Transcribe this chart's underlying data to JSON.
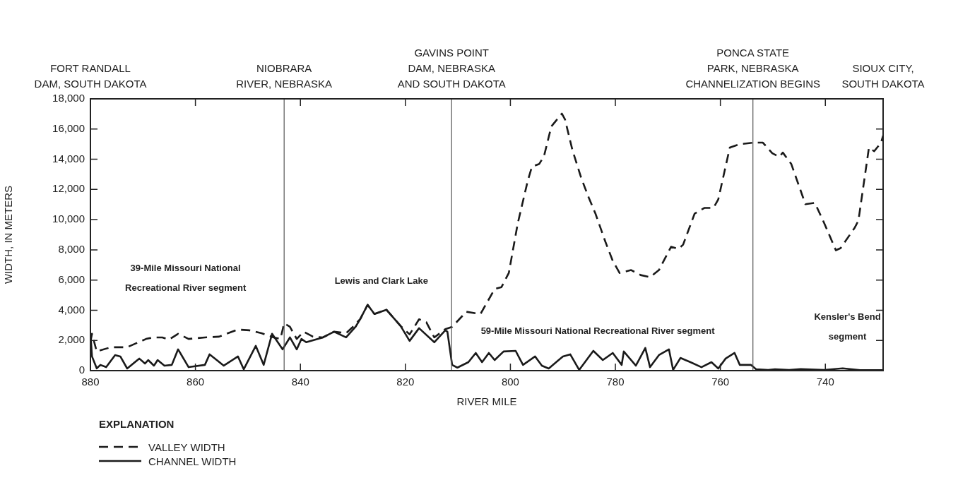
{
  "chart_data": {
    "type": "line",
    "xlabel": "RIVER MILE",
    "ylabel": "WIDTH, IN METERS",
    "legend_title": "EXPLANATION",
    "legend": "bottom left",
    "grid": false,
    "marker": "none",
    "xlim": [
      880,
      729
    ],
    "xticks": [
      880,
      860,
      840,
      820,
      800,
      780,
      760,
      740
    ],
    "ylim": [
      0,
      18000
    ],
    "yticks": [
      {
        "value": 0,
        "label": "0"
      },
      {
        "value": 2000,
        "label": "2,000"
      },
      {
        "value": 4000,
        "label": "4,000"
      },
      {
        "value": 6000,
        "label": "6,000"
      },
      {
        "value": 8000,
        "label": "8,000"
      },
      {
        "value": 10000,
        "label": "10,000"
      },
      {
        "value": 12000,
        "label": "12,000"
      },
      {
        "value": 14000,
        "label": "14,000"
      },
      {
        "value": 16000,
        "label": "16,000"
      },
      {
        "value": 18000,
        "label": "18,000"
      }
    ],
    "series": [
      {
        "name": "VALLEY WIDTH",
        "color": "#1a1a1a",
        "line_style": "dashed",
        "x": [
          880,
          879.7,
          878.8,
          876.1,
          873,
          869.4,
          868,
          866.3,
          865,
          863.3,
          861.3,
          858.2,
          855.5,
          853.8,
          851.9,
          849.7,
          847.4,
          845.1,
          843.8,
          843.1,
          842,
          840.7,
          839.4,
          837.6,
          835.7,
          833.6,
          831.3,
          830,
          828.6,
          827.2,
          825.9,
          823.6,
          820.9,
          819.2,
          817.4,
          816,
          814.5,
          812.4,
          811.1,
          808.4,
          805.7,
          803,
          801.7,
          800.3,
          798.6,
          796.7,
          795.9,
          794.5,
          793.6,
          792.2,
          790.2,
          789.6,
          788.2,
          786.5,
          785.1,
          783.8,
          781.9,
          780.5,
          779.2,
          777,
          775.2,
          773.4,
          771.7,
          769.4,
          768,
          767.1,
          764.9,
          763,
          761.3,
          760.4,
          758.2,
          756.3,
          753.6,
          751.9,
          750.1,
          748.8,
          748.1,
          746.5,
          743.8,
          742,
          740.2,
          738,
          737.1,
          734.4,
          733.7,
          731.7,
          730.7,
          729.4,
          729
        ],
        "values": [
          1900,
          2440,
          1270,
          1550,
          1550,
          2100,
          2200,
          2200,
          2060,
          2440,
          2100,
          2200,
          2250,
          2480,
          2720,
          2670,
          2480,
          2200,
          2100,
          3140,
          2900,
          2100,
          2580,
          2250,
          2200,
          2580,
          2480,
          2900,
          3420,
          4360,
          3750,
          4030,
          2950,
          2400,
          3400,
          3200,
          2200,
          2750,
          2900,
          3900,
          3750,
          5400,
          5530,
          6470,
          9750,
          12560,
          13500,
          13690,
          14200,
          16170,
          17020,
          16640,
          14630,
          12750,
          11480,
          10400,
          8530,
          7270,
          6470,
          6660,
          6330,
          6190,
          6660,
          8200,
          8060,
          8340,
          10400,
          10780,
          10780,
          11340,
          14770,
          15000,
          15100,
          15100,
          14390,
          14160,
          14440,
          13690,
          11020,
          11110,
          9750,
          7970,
          8110,
          9470,
          9940,
          14770,
          14530,
          15100,
          15560
        ]
      },
      {
        "name": "CHANNEL WIDTH",
        "color": "#1a1a1a",
        "line_style": "solid",
        "x": [
          880,
          879.7,
          878.8,
          878.1,
          877,
          875.3,
          874.3,
          873,
          870.7,
          869.6,
          869,
          867.9,
          867.2,
          865.9,
          864.5,
          863.3,
          861.3,
          858.2,
          857.3,
          854.6,
          851.9,
          850.8,
          848.5,
          847,
          845.4,
          843.4,
          842,
          840.7,
          839.8,
          838.9,
          835.7,
          833.6,
          831.3,
          829.5,
          828.6,
          827.2,
          825.9,
          823.6,
          820.9,
          819.2,
          817.4,
          814.5,
          812.4,
          812,
          811.1,
          810.1,
          808,
          806.6,
          805.4,
          804.1,
          803,
          801.3,
          799,
          797.6,
          795.3,
          794,
          792.7,
          790,
          788.6,
          786.9,
          784.2,
          782.4,
          780.5,
          778.8,
          778.4,
          776.1,
          774.3,
          773.4,
          771.7,
          769.8,
          769,
          767.6,
          765.7,
          763.6,
          761.7,
          760.4,
          759,
          757.3,
          756.3,
          754.2,
          753.2,
          750.9,
          749.6,
          746.9,
          744.7,
          740.2,
          736.7,
          733.4,
          729
        ],
        "values": [
          2480,
          940,
          150,
          380,
          230,
          1030,
          940,
          140,
          800,
          470,
          700,
          330,
          700,
          330,
          380,
          1410,
          230,
          380,
          1080,
          330,
          940,
          90,
          1640,
          380,
          2440,
          1410,
          2200,
          1410,
          2100,
          1880,
          2200,
          2580,
          2200,
          2900,
          3420,
          4360,
          3750,
          4030,
          2950,
          1970,
          2810,
          1880,
          2670,
          2580,
          380,
          200,
          560,
          1170,
          560,
          1170,
          700,
          1270,
          1310,
          380,
          940,
          330,
          140,
          940,
          1080,
          50,
          1310,
          700,
          1170,
          380,
          1270,
          330,
          1500,
          230,
          1030,
          1410,
          50,
          840,
          560,
          230,
          560,
          140,
          800,
          1170,
          380,
          380,
          90,
          50,
          90,
          50,
          100,
          50,
          150,
          30,
          30
        ]
      }
    ],
    "ref_lines": [
      {
        "axis": "x",
        "value": 843.1,
        "label": "NIOBRARA\nRIVER, NEBRASKA",
        "color": "#555555"
      },
      {
        "axis": "x",
        "value": 811.2,
        "label": "GAVINS POINT\nDAM, NEBRASKA\nAND SOUTH DAKOTA",
        "color": "#555555"
      },
      {
        "axis": "x",
        "value": 753.8,
        "label": "PONCA STATE\nPARK, NEBRASKA\nCHANNELIZATION BEGINS",
        "color": "#555555"
      }
    ],
    "annotations": [
      "FORT RANDALL\nDAM, SOUTH DAKOTA",
      "SIOUX CITY,\nSOUTH DAKOTA",
      "39-Mile Missouri National\nRecreational River segment",
      "Lewis and Clark Lake",
      "59-Mile Missouri National Recreational River segment",
      "Kensler's Bend\nsegment"
    ]
  }
}
